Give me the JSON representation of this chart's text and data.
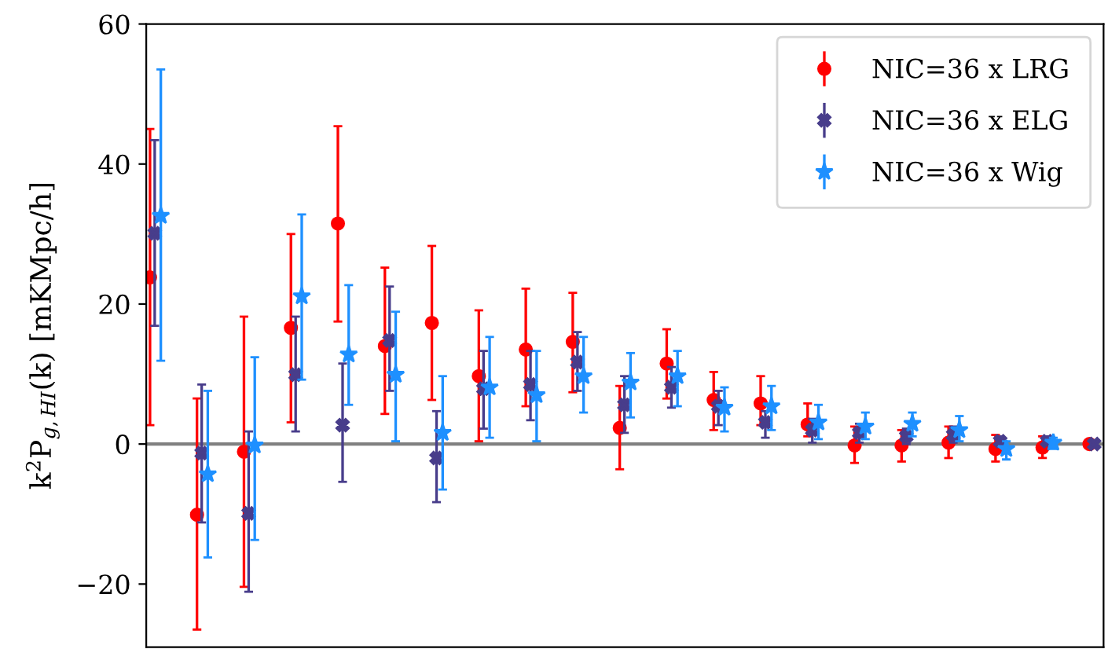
{
  "chart_data": {
    "type": "scatter",
    "ylabel": "k$^{2}$P$_{g,HI}$(k) [mKMpc/h]",
    "categories": [
      null,
      null,
      null,
      null,
      null,
      null,
      null,
      null,
      null,
      null,
      null,
      null,
      null,
      null,
      null,
      null,
      null,
      null,
      null,
      null,
      null
    ],
    "ylim": [
      -29,
      60
    ],
    "yticks": [
      {
        "value": -20,
        "label": "−20"
      },
      0,
      20,
      40,
      60
    ],
    "series": [
      {
        "name": "NIC=36 x LRG",
        "color": "#ff0000",
        "marker": "circle",
        "values": [
          23.8,
          -10.1,
          -1.1,
          16.6,
          31.5,
          14,
          17.3,
          9.7,
          13.5,
          14.6,
          2.3,
          11.5,
          6.3,
          5.8,
          2.8,
          -0.2,
          -0.2,
          0.2,
          -0.7,
          -0.5,
          0
        ],
        "errors": [
          [
            2.7,
            45
          ],
          [
            -26.5,
            6.5
          ],
          [
            -20.4,
            18.2
          ],
          [
            3.1,
            30
          ],
          [
            17.5,
            45.4
          ],
          [
            4.3,
            25.2
          ],
          [
            6.3,
            28.3
          ],
          [
            0.4,
            19.1
          ],
          [
            5.4,
            22.2
          ],
          [
            7.4,
            21.6
          ],
          [
            -3.6,
            8.3
          ],
          [
            6.5,
            16.4
          ],
          [
            2,
            10.3
          ],
          [
            2.7,
            9.7
          ],
          [
            1.1,
            5.8
          ],
          [
            -2.7,
            2.5
          ],
          [
            -2.5,
            2
          ],
          [
            -2,
            2.5
          ],
          [
            -2.5,
            1.3
          ],
          [
            -2,
            1.1
          ],
          [
            -0.5,
            0.5
          ]
        ]
      },
      {
        "name": "NIC=36 x ELG",
        "color": "#483d8b",
        "marker": "cross",
        "values": [
          30.1,
          -1.3,
          -9.9,
          9.9,
          2.7,
          14.8,
          -2,
          7.9,
          8.5,
          11.7,
          5.6,
          8.1,
          5.4,
          3.1,
          2,
          1.6,
          1.1,
          1.3,
          0.4,
          0.4,
          0
        ],
        "errors": [
          [
            16.9,
            43.4
          ],
          [
            -11.2,
            8.5
          ],
          [
            -21.1,
            1.8
          ],
          [
            1.8,
            18.2
          ],
          [
            -5.4,
            11.5
          ],
          [
            7.6,
            22.5
          ],
          [
            -8.3,
            4.7
          ],
          [
            2.2,
            13.3
          ],
          [
            3.4,
            13.3
          ],
          [
            7.6,
            16
          ],
          [
            1.6,
            9.7
          ],
          [
            5.2,
            11
          ],
          [
            2.7,
            7.6
          ],
          [
            0.9,
            4.7
          ],
          [
            0.2,
            3.6
          ],
          [
            0.2,
            2.9
          ],
          [
            0,
            2.2
          ],
          [
            0.2,
            2.5
          ],
          [
            -0.2,
            1.1
          ],
          [
            -0.2,
            1.1
          ],
          [
            -0.5,
            0.5
          ]
        ]
      },
      {
        "name": "NIC=36 x Wig",
        "color": "#1e90ff",
        "marker": "star",
        "values": [
          32.6,
          -4.3,
          -0.2,
          21.1,
          12.8,
          9.9,
          1.6,
          8.1,
          7,
          9.7,
          8.8,
          9.7,
          5.2,
          5.4,
          3.1,
          2.5,
          2.9,
          2,
          -0.7,
          0.2,
          null
        ],
        "errors": [
          [
            11.9,
            53.5
          ],
          [
            -16.2,
            7.6
          ],
          [
            -13.7,
            12.4
          ],
          [
            9.2,
            32.8
          ],
          [
            5.6,
            22.7
          ],
          [
            0.4,
            18.9
          ],
          [
            -6.5,
            9.7
          ],
          [
            0.9,
            15.3
          ],
          [
            0.4,
            13.3
          ],
          [
            4.5,
            15.3
          ],
          [
            3.8,
            13
          ],
          [
            5.4,
            13.3
          ],
          [
            1.8,
            8.1
          ],
          [
            2,
            8.3
          ],
          [
            0.7,
            5.6
          ],
          [
            0.7,
            4.5
          ],
          [
            1.1,
            4.5
          ],
          [
            0.4,
            4
          ],
          [
            -2.2,
            0.4
          ],
          [
            -0.7,
            0.9
          ],
          null
        ]
      }
    ],
    "ref_lines": [
      {
        "axis": "y",
        "value": 0,
        "label": null,
        "color": "#808080"
      }
    ],
    "legend": "top right",
    "grid": false
  }
}
